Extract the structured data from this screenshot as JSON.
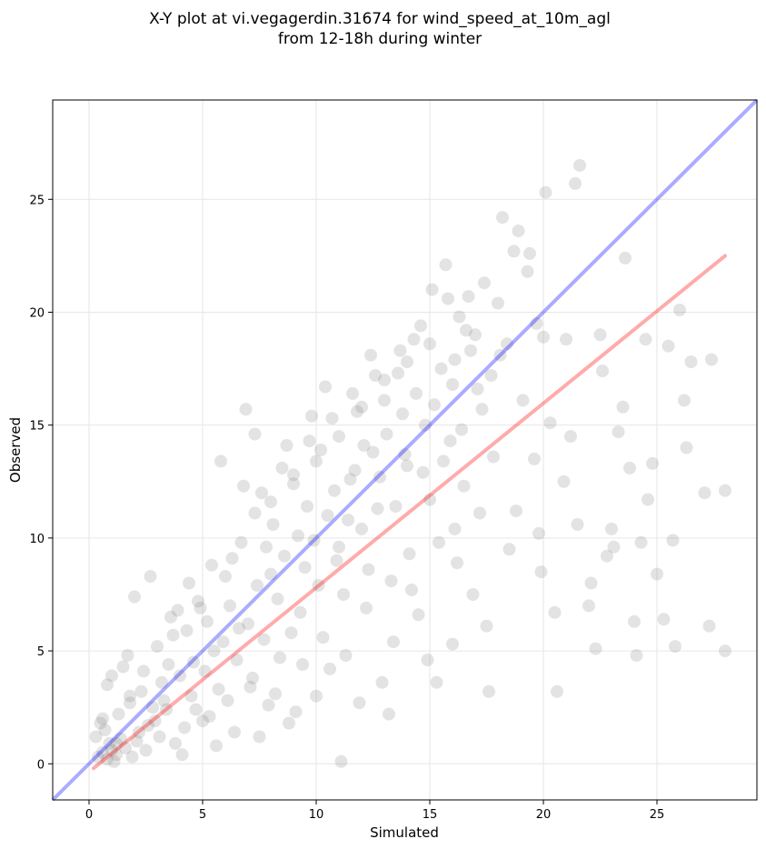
{
  "chart_data": {
    "type": "scatter",
    "title_line1": "X-Y plot at vi.vegagerdin.31674 for wind_speed_at_10m_agl",
    "title_line2": "from 12-18h during winter",
    "xlabel": "Simulated",
    "ylabel": "Observed",
    "xlim": [
      -1.6,
      29.4
    ],
    "ylim": [
      -1.6,
      29.4
    ],
    "xticks": [
      0,
      5,
      10,
      15,
      20,
      25
    ],
    "yticks": [
      0,
      5,
      10,
      15,
      20,
      25
    ],
    "grid": true,
    "point_color": "#808080",
    "identity_line": {
      "color": "#0000ff",
      "x": [
        -1.6,
        29.4
      ],
      "y": [
        -1.6,
        29.4
      ]
    },
    "fit_line": {
      "color": "#ff0000",
      "x": [
        0.2,
        28.0
      ],
      "y": [
        -0.2,
        22.5
      ]
    },
    "series": [
      {
        "points": [
          [
            0.4,
            0.3
          ],
          [
            0.6,
            0.5
          ],
          [
            0.8,
            0.2
          ],
          [
            1.0,
            0.6
          ],
          [
            1.2,
            0.4
          ],
          [
            0.9,
            0.9
          ],
          [
            1.4,
            1.1
          ],
          [
            0.7,
            1.5
          ],
          [
            1.1,
            0.1
          ],
          [
            1.6,
            0.7
          ],
          [
            0.5,
            1.8
          ],
          [
            1.3,
            2.2
          ],
          [
            0.8,
            3.5
          ],
          [
            1.0,
            3.9
          ],
          [
            1.5,
            4.3
          ],
          [
            1.7,
            4.8
          ],
          [
            2.0,
            7.4
          ],
          [
            2.7,
            8.3
          ],
          [
            1.8,
            2.7
          ],
          [
            2.2,
            1.4
          ],
          [
            2.5,
            0.6
          ],
          [
            2.9,
            1.9
          ],
          [
            3.2,
            3.6
          ],
          [
            3.0,
            5.2
          ],
          [
            3.6,
            6.5
          ],
          [
            3.9,
            6.8
          ],
          [
            3.4,
            2.4
          ],
          [
            3.8,
            0.9
          ],
          [
            4.2,
            1.6
          ],
          [
            4.5,
            3.0
          ],
          [
            4.3,
            5.9
          ],
          [
            4.4,
            8.0
          ],
          [
            4.8,
            7.2
          ],
          [
            5.1,
            4.1
          ],
          [
            5.3,
            2.1
          ],
          [
            5.6,
            0.8
          ],
          [
            5.9,
            5.4
          ],
          [
            6.0,
            8.3
          ],
          [
            6.3,
            9.1
          ],
          [
            6.6,
            6.0
          ],
          [
            6.8,
            12.3
          ],
          [
            6.9,
            15.7
          ],
          [
            5.8,
            13.4
          ],
          [
            7.3,
            14.6
          ],
          [
            7.1,
            3.4
          ],
          [
            7.5,
            1.2
          ],
          [
            7.8,
            9.6
          ],
          [
            8.1,
            10.6
          ],
          [
            8.4,
            4.7
          ],
          [
            8.7,
            14.1
          ],
          [
            9.0,
            12.4
          ],
          [
            9.1,
            2.3
          ],
          [
            9.3,
            6.7
          ],
          [
            9.6,
            11.4
          ],
          [
            9.8,
            15.4
          ],
          [
            10.2,
            13.9
          ],
          [
            10.4,
            16.7
          ],
          [
            10.6,
            4.2
          ],
          [
            10.9,
            9.0
          ],
          [
            11.1,
            0.1
          ],
          [
            11.2,
            7.5
          ],
          [
            11.5,
            12.6
          ],
          [
            11.8,
            15.6
          ],
          [
            12.1,
            14.1
          ],
          [
            12.3,
            8.6
          ],
          [
            12.4,
            18.1
          ],
          [
            12.7,
            11.3
          ],
          [
            13.0,
            16.1
          ],
          [
            13.2,
            2.2
          ],
          [
            13.4,
            5.4
          ],
          [
            13.6,
            17.3
          ],
          [
            13.9,
            13.7
          ],
          [
            14.1,
            9.3
          ],
          [
            14.3,
            18.8
          ],
          [
            14.5,
            6.6
          ],
          [
            14.8,
            15.0
          ],
          [
            15.0,
            11.7
          ],
          [
            15.1,
            21.0
          ],
          [
            15.3,
            3.6
          ],
          [
            15.5,
            17.5
          ],
          [
            15.7,
            22.1
          ],
          [
            15.9,
            14.3
          ],
          [
            16.1,
            10.4
          ],
          [
            16.3,
            19.8
          ],
          [
            16.5,
            12.3
          ],
          [
            16.7,
            20.7
          ],
          [
            16.9,
            7.5
          ],
          [
            17.1,
            16.6
          ],
          [
            17.4,
            21.3
          ],
          [
            17.6,
            3.2
          ],
          [
            17.8,
            13.6
          ],
          [
            18.1,
            18.1
          ],
          [
            18.2,
            24.2
          ],
          [
            18.5,
            9.5
          ],
          [
            18.7,
            22.7
          ],
          [
            18.9,
            23.6
          ],
          [
            19.1,
            16.1
          ],
          [
            19.4,
            22.6
          ],
          [
            19.7,
            19.5
          ],
          [
            19.9,
            8.5
          ],
          [
            20.1,
            25.3
          ],
          [
            20.3,
            15.1
          ],
          [
            20.5,
            6.7
          ],
          [
            20.6,
            3.2
          ],
          [
            21.0,
            18.8
          ],
          [
            21.4,
            25.7
          ],
          [
            21.6,
            26.5
          ],
          [
            21.5,
            10.6
          ],
          [
            22.0,
            7.0
          ],
          [
            22.3,
            5.1
          ],
          [
            22.6,
            17.4
          ],
          [
            22.8,
            9.2
          ],
          [
            23.0,
            10.4
          ],
          [
            23.3,
            14.7
          ],
          [
            23.6,
            22.4
          ],
          [
            23.8,
            13.1
          ],
          [
            24.1,
            4.8
          ],
          [
            24.3,
            9.8
          ],
          [
            24.5,
            18.8
          ],
          [
            24.8,
            13.3
          ],
          [
            25.0,
            8.4
          ],
          [
            25.3,
            6.4
          ],
          [
            25.8,
            5.2
          ],
          [
            26.0,
            20.1
          ],
          [
            26.2,
            16.1
          ],
          [
            26.5,
            17.8
          ],
          [
            27.1,
            12.0
          ],
          [
            27.3,
            6.1
          ],
          [
            27.4,
            17.9
          ],
          [
            28.0,
            12.1
          ],
          [
            28.0,
            5.0
          ],
          [
            1.2,
            0.9
          ],
          [
            1.9,
            0.3
          ],
          [
            2.3,
            3.2
          ],
          [
            2.8,
            2.5
          ],
          [
            3.5,
            4.4
          ],
          [
            4.0,
            3.9
          ],
          [
            4.6,
            4.5
          ],
          [
            5.2,
            6.3
          ],
          [
            5.5,
            5.0
          ],
          [
            6.2,
            7.0
          ],
          [
            6.5,
            4.6
          ],
          [
            7.0,
            6.2
          ],
          [
            7.4,
            7.9
          ],
          [
            7.7,
            5.5
          ],
          [
            8.0,
            8.4
          ],
          [
            8.3,
            7.3
          ],
          [
            8.6,
            9.2
          ],
          [
            8.9,
            5.8
          ],
          [
            9.2,
            10.1
          ],
          [
            9.5,
            8.7
          ],
          [
            9.9,
            9.9
          ],
          [
            10.1,
            7.9
          ],
          [
            10.5,
            11.0
          ],
          [
            10.8,
            12.1
          ],
          [
            11.0,
            9.6
          ],
          [
            11.4,
            10.8
          ],
          [
            11.7,
            13.0
          ],
          [
            12.0,
            10.4
          ],
          [
            12.5,
            13.8
          ],
          [
            12.8,
            12.7
          ],
          [
            13.1,
            14.6
          ],
          [
            13.5,
            11.4
          ],
          [
            13.8,
            15.5
          ],
          [
            14.0,
            13.2
          ],
          [
            14.4,
            16.4
          ],
          [
            14.7,
            12.9
          ],
          [
            15.2,
            15.9
          ],
          [
            15.6,
            13.4
          ],
          [
            16.0,
            16.8
          ],
          [
            16.4,
            14.8
          ],
          [
            16.8,
            18.3
          ],
          [
            17.3,
            15.7
          ],
          [
            17.7,
            17.2
          ],
          [
            18.0,
            20.4
          ],
          [
            3.1,
            1.2
          ],
          [
            4.1,
            0.4
          ],
          [
            5.0,
            1.9
          ],
          [
            6.1,
            2.8
          ],
          [
            7.2,
            3.8
          ],
          [
            8.2,
            3.1
          ],
          [
            9.4,
            4.4
          ],
          [
            10.3,
            5.6
          ],
          [
            11.3,
            4.8
          ],
          [
            12.2,
            6.9
          ],
          [
            13.3,
            8.1
          ],
          [
            14.2,
            7.7
          ],
          [
            15.4,
            9.8
          ],
          [
            16.2,
            8.9
          ],
          [
            17.2,
            11.1
          ],
          [
            7.6,
            12.0
          ],
          [
            8.5,
            13.1
          ],
          [
            9.7,
            14.3
          ],
          [
            10.7,
            15.3
          ],
          [
            11.6,
            16.4
          ],
          [
            12.6,
            17.2
          ],
          [
            13.7,
            18.3
          ],
          [
            14.6,
            19.4
          ],
          [
            15.8,
            20.6
          ],
          [
            16.6,
            19.2
          ],
          [
            2.1,
            1.0
          ],
          [
            2.6,
            1.7
          ],
          [
            3.3,
            2.8
          ],
          [
            4.7,
            2.4
          ],
          [
            5.7,
            3.3
          ],
          [
            6.4,
            1.4
          ],
          [
            7.9,
            2.6
          ],
          [
            8.8,
            1.8
          ],
          [
            10.0,
            3.0
          ],
          [
            11.9,
            2.7
          ],
          [
            12.9,
            3.6
          ],
          [
            14.9,
            4.6
          ],
          [
            16.0,
            5.3
          ],
          [
            17.5,
            6.1
          ],
          [
            0.3,
            1.2
          ],
          [
            0.6,
            2.0
          ],
          [
            1.8,
            3.0
          ],
          [
            2.4,
            4.1
          ],
          [
            3.7,
            5.7
          ],
          [
            4.9,
            6.9
          ],
          [
            5.4,
            8.8
          ],
          [
            6.7,
            9.8
          ],
          [
            7.3,
            11.1
          ],
          [
            8.0,
            11.6
          ],
          [
            9.0,
            12.8
          ],
          [
            10.0,
            13.4
          ],
          [
            11.0,
            14.5
          ],
          [
            12.0,
            15.8
          ],
          [
            13.0,
            17.0
          ],
          [
            14.0,
            17.8
          ],
          [
            15.0,
            18.6
          ],
          [
            16.1,
            17.9
          ],
          [
            17.0,
            19.0
          ],
          [
            18.4,
            18.6
          ],
          [
            19.3,
            21.8
          ],
          [
            20.0,
            18.9
          ],
          [
            21.2,
            14.5
          ],
          [
            22.5,
            19.0
          ],
          [
            23.5,
            15.8
          ],
          [
            24.6,
            11.7
          ],
          [
            25.7,
            9.9
          ],
          [
            26.3,
            14.0
          ],
          [
            19.6,
            13.5
          ],
          [
            18.8,
            11.2
          ],
          [
            19.8,
            10.2
          ],
          [
            20.9,
            12.5
          ],
          [
            22.1,
            8.0
          ],
          [
            23.1,
            9.6
          ],
          [
            24.0,
            6.3
          ],
          [
            25.5,
            18.5
          ]
        ]
      }
    ]
  }
}
